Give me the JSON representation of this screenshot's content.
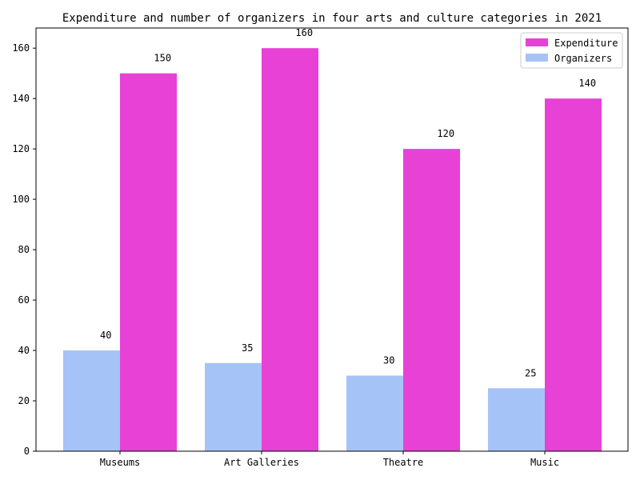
{
  "chart_data": {
    "type": "bar",
    "title": "Expenditure and number of organizers in four arts and culture categories in 2021",
    "xlabel": "",
    "ylabel": "",
    "categories": [
      "Museums",
      "Art Galleries",
      "Theatre",
      "Music"
    ],
    "series": [
      {
        "name": "Organizers",
        "values": [
          40,
          35,
          30,
          25
        ],
        "color": "#a6c3f7"
      },
      {
        "name": "Expenditure",
        "values": [
          150,
          160,
          120,
          140
        ],
        "color": "#e841d6"
      }
    ],
    "legend_order": [
      "Expenditure",
      "Organizers"
    ],
    "ylim": [
      0,
      168
    ],
    "yticks": [
      0,
      20,
      40,
      60,
      80,
      100,
      120,
      140,
      160
    ],
    "grid": false,
    "legend_position": "top-right",
    "data_labels": true
  }
}
